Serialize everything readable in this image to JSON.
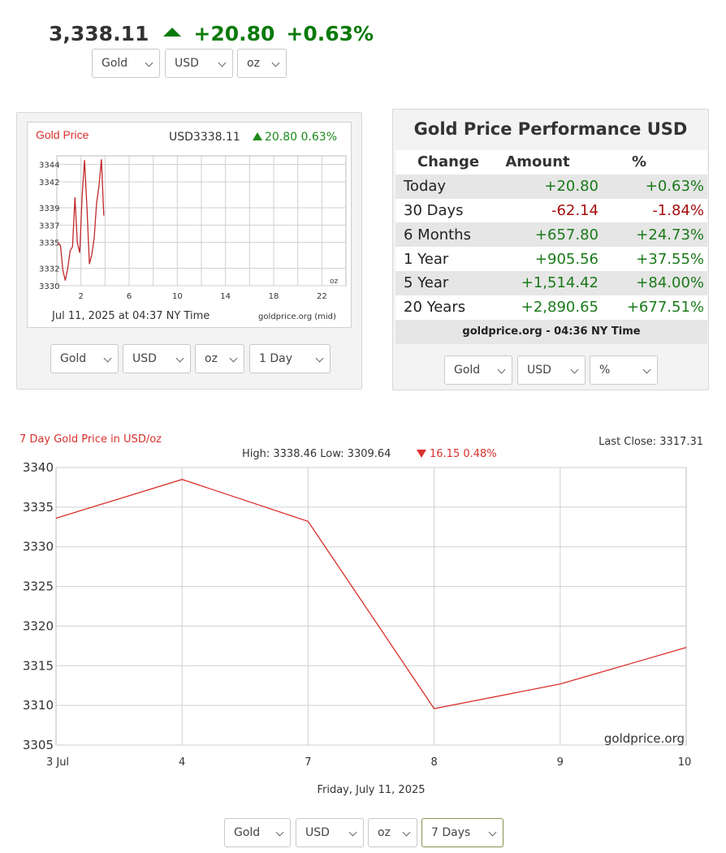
{
  "ticker": {
    "price": "3,338.11",
    "change": "+20.80",
    "change_pct": "+0.63%",
    "direction": "up",
    "up_color": "#0a7a0a"
  },
  "top_selects": [
    "Gold",
    "USD",
    "oz"
  ],
  "small_chart": {
    "title": "Gold Price",
    "quote_prefix": "USD3338.11",
    "quote_change": "20.80 0.63%",
    "footer_left": "Jul 11, 2025 at 04:37 NY Time",
    "footer_right": "goldprice.org (mid)",
    "unit": "oz",
    "selects": [
      "Gold",
      "USD",
      "oz",
      "1 Day"
    ]
  },
  "performance": {
    "title": "Gold Price Performance USD",
    "headers": [
      "Change",
      "Amount",
      "%"
    ],
    "rows": [
      {
        "period": "Today",
        "amount": "+20.80",
        "pct": "+0.63%",
        "sign": "pos"
      },
      {
        "period": "30 Days",
        "amount": "-62.14",
        "pct": "-1.84%",
        "sign": "neg"
      },
      {
        "period": "6 Months",
        "amount": "+657.80",
        "pct": "+24.73%",
        "sign": "pos"
      },
      {
        "period": "1 Year",
        "amount": "+905.56",
        "pct": "+37.55%",
        "sign": "pos"
      },
      {
        "period": "5 Year",
        "amount": "+1,514.42",
        "pct": "+84.00%",
        "sign": "pos"
      },
      {
        "period": "20 Years",
        "amount": "+2,890.65",
        "pct": "+677.51%",
        "sign": "pos"
      }
    ],
    "footer": "goldprice.org - 04:36 NY Time",
    "selects": [
      "Gold",
      "USD",
      "%"
    ]
  },
  "big_chart": {
    "title": "7 Day Gold Price in USD/oz",
    "last_close": "Last Close: 3317.31",
    "stats": "High: 3338.46 Low: 3309.64",
    "stats_change": "16.15 0.48%",
    "watermark": "goldprice.org",
    "date_label": "Friday, July 11, 2025",
    "selects": [
      "Gold",
      "USD",
      "oz",
      "7 Days"
    ]
  },
  "chart_data": [
    {
      "type": "line",
      "title": "Gold Price",
      "xlabel": "",
      "ylabel": "",
      "x_ticks": [
        2,
        6,
        10,
        14,
        18,
        22
      ],
      "y_ticks": [
        3330,
        3332,
        3335,
        3337,
        3339,
        3342,
        3344
      ],
      "xlim": [
        0,
        24
      ],
      "ylim": [
        3330,
        3345
      ],
      "grid": true,
      "x": [
        0.1,
        0.3,
        0.5,
        0.7,
        0.9,
        1.1,
        1.3,
        1.5,
        1.7,
        1.9,
        2.1,
        2.3,
        2.5,
        2.7,
        2.9,
        3.1,
        3.3,
        3.5,
        3.7,
        3.9,
        4.1,
        4.3
      ],
      "values": [
        3335.0,
        3334.6,
        3331.8,
        3330.6,
        3332.0,
        3334.0,
        3334.5,
        3340.2,
        3335.0,
        3333.8,
        3340.5,
        3344.5,
        3339.0,
        3332.5,
        3333.6,
        3335.5,
        3339.5,
        3341.5,
        3344.6,
        3338.1,
        null,
        null
      ]
    },
    {
      "type": "line",
      "title": "7 Day Gold Price in USD/oz",
      "xlabel": "Friday, July 11, 2025",
      "ylabel": "",
      "categories": [
        "3 Jul",
        "4",
        "7",
        "8",
        "9",
        "10"
      ],
      "values": [
        3333.6,
        3338.5,
        3333.2,
        3309.6,
        3312.7,
        3317.3
      ],
      "ylim": [
        3305,
        3340
      ],
      "y_ticks": [
        3305,
        3310,
        3315,
        3320,
        3325,
        3330,
        3335,
        3340
      ],
      "grid": true,
      "line_color": "#d9302c"
    }
  ]
}
